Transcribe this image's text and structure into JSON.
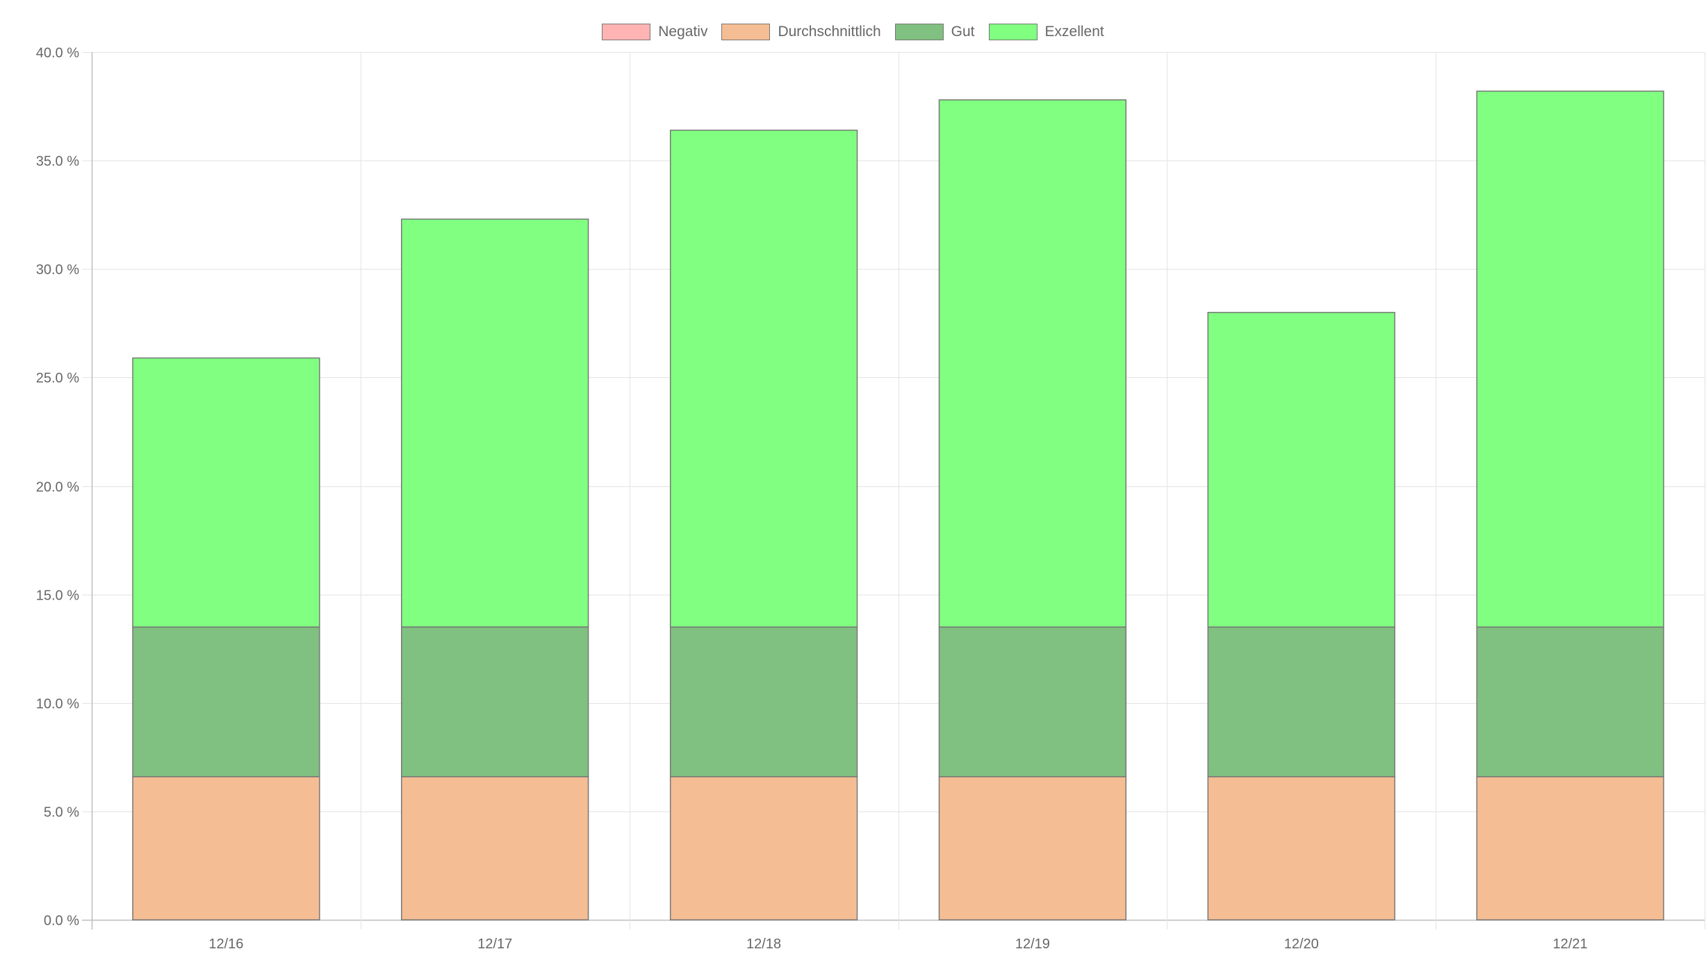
{
  "chart_data": {
    "type": "bar",
    "stacked": true,
    "title": "",
    "xlabel": "",
    "ylabel": "",
    "categories": [
      "12/16",
      "12/17",
      "12/18",
      "12/19",
      "12/20",
      "12/21"
    ],
    "series": [
      {
        "name": "Negativ",
        "color": "#ffb3b3",
        "values": [
          0,
          0,
          0,
          0,
          0,
          0
        ]
      },
      {
        "name": "Durchschnittlich",
        "color": "#f5bd93",
        "values": [
          6.6,
          6.6,
          6.6,
          6.6,
          6.6,
          6.6
        ]
      },
      {
        "name": "Gut",
        "color": "#80c080",
        "values": [
          6.9,
          6.9,
          6.9,
          6.9,
          6.9,
          6.9
        ]
      },
      {
        "name": "Exzellent",
        "color": "#80ff80",
        "values": [
          12.4,
          18.8,
          22.9,
          24.3,
          14.5,
          24.7
        ]
      }
    ],
    "ylim": [
      0,
      40
    ],
    "yticks": [
      {
        "value": 0,
        "label": "0.0 %"
      },
      {
        "value": 5,
        "label": "5.0 %"
      },
      {
        "value": 10,
        "label": "10.0 %"
      },
      {
        "value": 15,
        "label": "15.0 %"
      },
      {
        "value": 20,
        "label": "20.0 %"
      },
      {
        "value": 25,
        "label": "25.0 %"
      },
      {
        "value": 30,
        "label": "30.0 %"
      },
      {
        "value": 35,
        "label": "35.0 %"
      },
      {
        "value": 40,
        "label": "40.0 %"
      }
    ],
    "grid": true,
    "legend_position": "top-center"
  }
}
